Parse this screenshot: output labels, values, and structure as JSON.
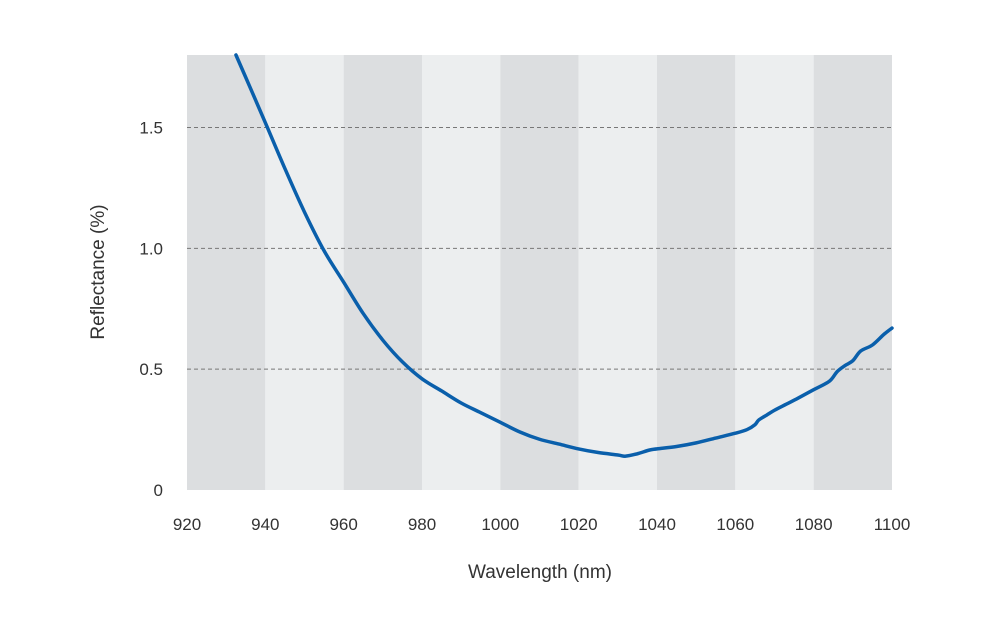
{
  "chart_data": {
    "type": "line",
    "title": "",
    "xlabel": "Wavelength (nm)",
    "ylabel": "Reflectance (%)",
    "xlim": [
      920,
      1100
    ],
    "ylim": [
      0,
      1.8
    ],
    "xticks": [
      920,
      940,
      960,
      980,
      1000,
      1020,
      1040,
      1060,
      1080,
      1100
    ],
    "xtick_labels": [
      "920",
      "940",
      "960",
      "980",
      "1000",
      "1020",
      "1040",
      "1060",
      "1080",
      "1100"
    ],
    "yticks": [
      0,
      0.5,
      1.0,
      1.5
    ],
    "ytick_labels": [
      "0",
      "0.5",
      "1.0",
      "1.5"
    ],
    "grid": "horizontal dashed at y ticks",
    "band_colors": [
      "#dcdee0",
      "#eceeef"
    ],
    "line_color": "#0a5fab",
    "series": [
      {
        "x": [
          932.5,
          936,
          940,
          945,
          950,
          955,
          960,
          965,
          970,
          975,
          980,
          985,
          990,
          995,
          1000,
          1005,
          1010,
          1015,
          1020,
          1025,
          1030,
          1032,
          1035,
          1038,
          1040,
          1045,
          1050,
          1055,
          1060,
          1063,
          1065,
          1066,
          1068,
          1070,
          1073,
          1076,
          1080,
          1084,
          1086,
          1088,
          1090,
          1092,
          1095,
          1098,
          1100
        ],
        "y": [
          1.8,
          1.67,
          1.52,
          1.33,
          1.15,
          0.99,
          0.86,
          0.73,
          0.62,
          0.53,
          0.46,
          0.41,
          0.36,
          0.32,
          0.28,
          0.24,
          0.21,
          0.19,
          0.17,
          0.155,
          0.145,
          0.14,
          0.15,
          0.165,
          0.17,
          0.18,
          0.195,
          0.215,
          0.235,
          0.25,
          0.27,
          0.29,
          0.31,
          0.33,
          0.355,
          0.38,
          0.415,
          0.45,
          0.49,
          0.515,
          0.535,
          0.575,
          0.6,
          0.645,
          0.67
        ]
      }
    ]
  }
}
